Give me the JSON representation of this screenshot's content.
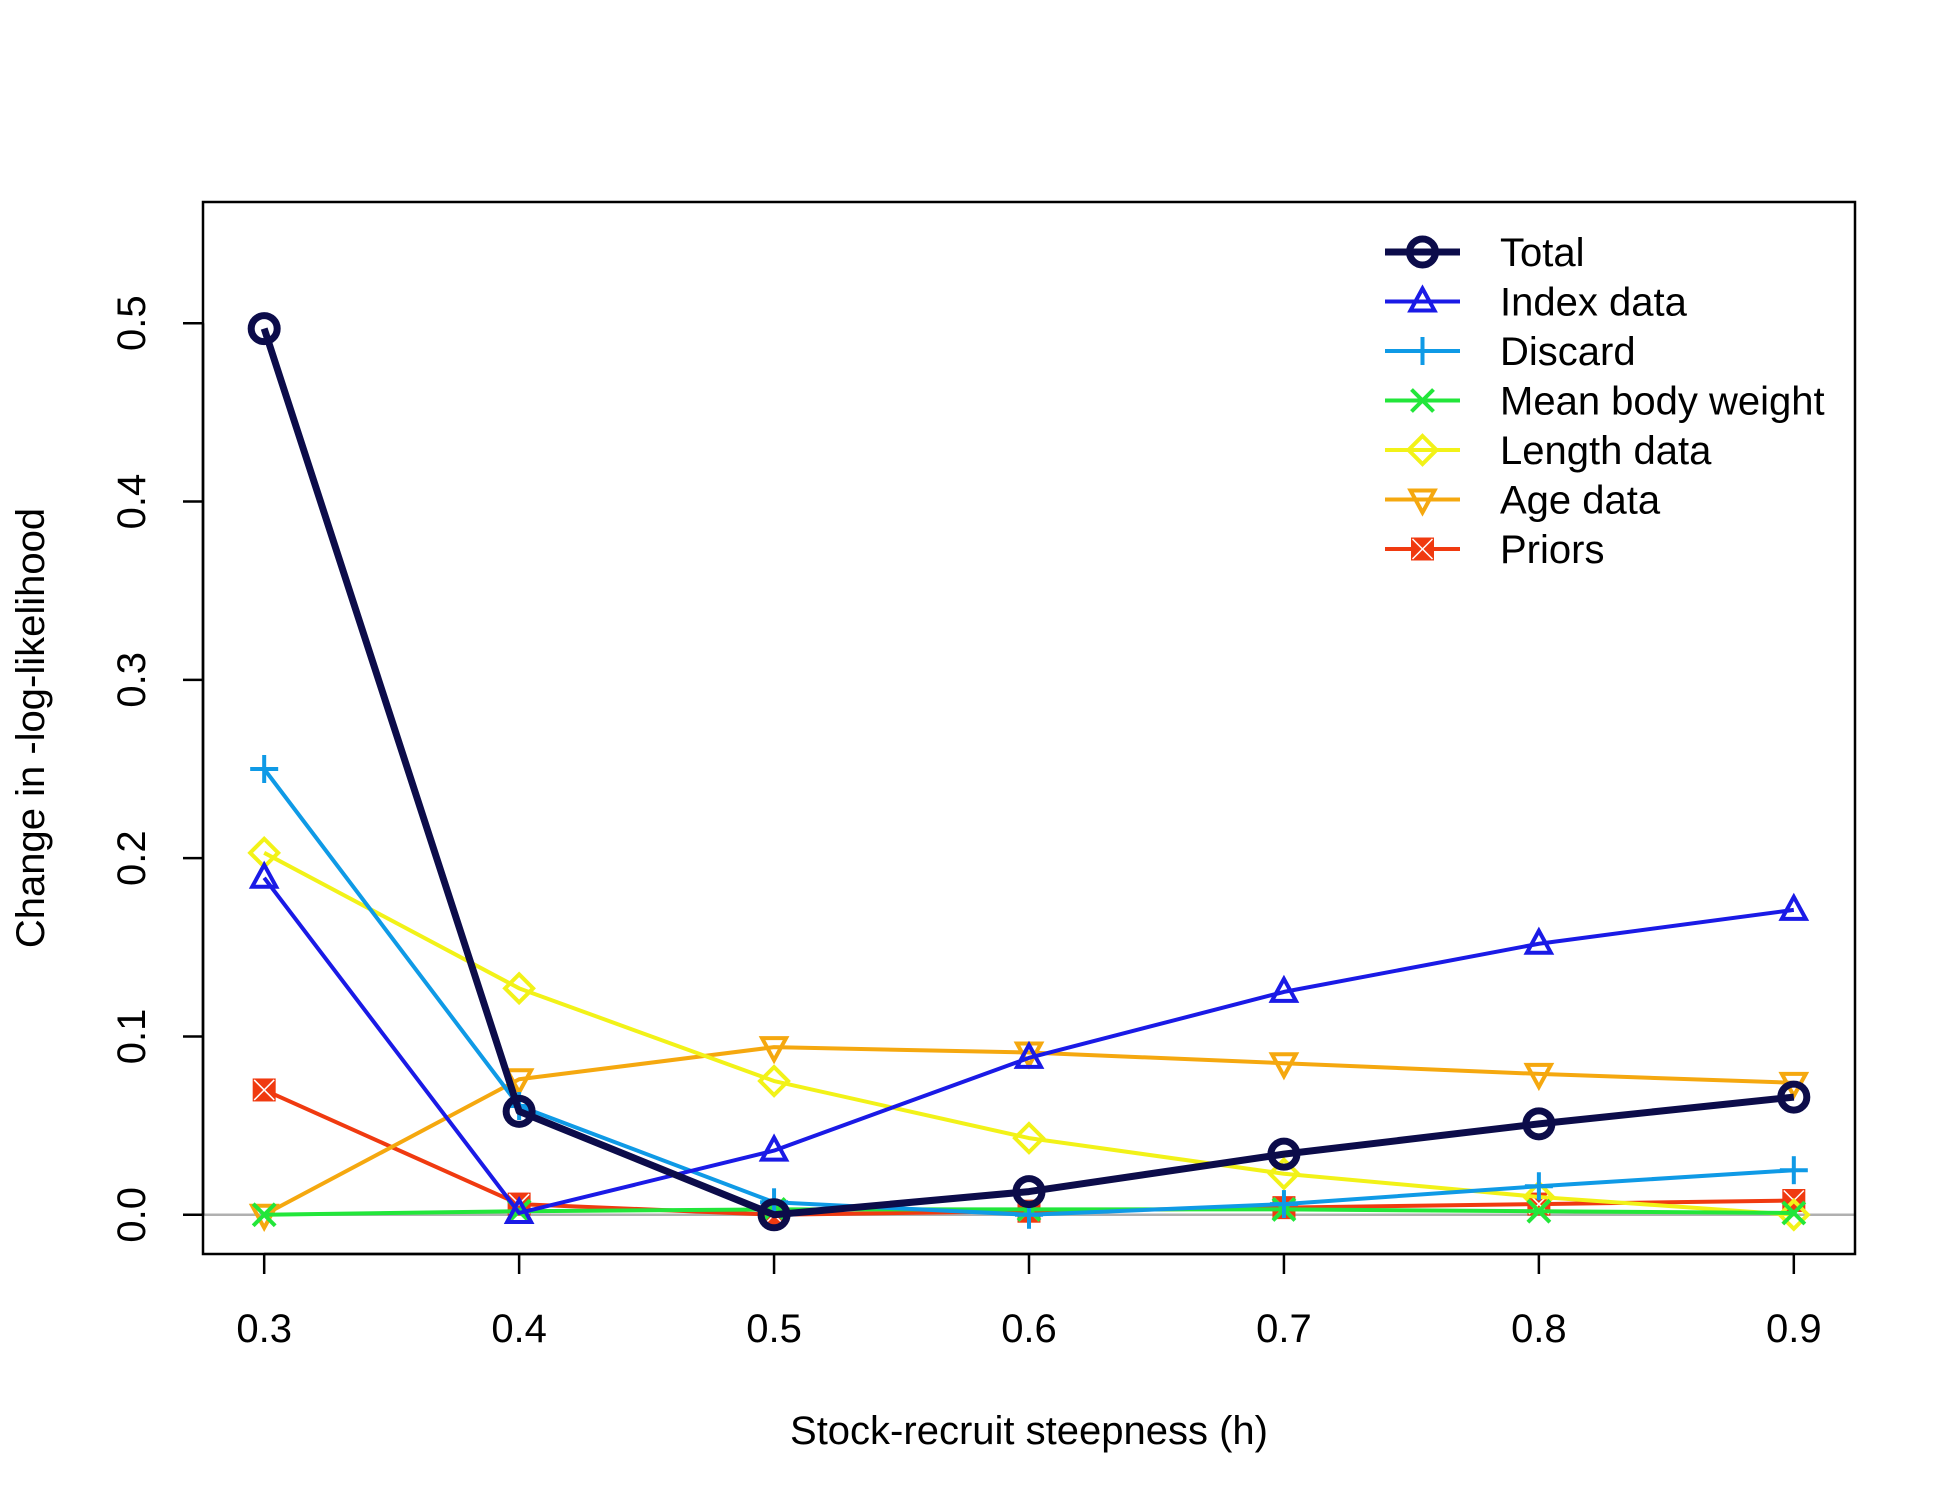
{
  "chart_data": {
    "type": "line",
    "title": "",
    "xlabel": "Stock-recruit steepness (h)",
    "ylabel": "Change in -log-likelihood",
    "x": [
      0.3,
      0.4,
      0.5,
      0.6,
      0.7,
      0.8,
      0.9
    ],
    "xlim": [
      0.276,
      0.924
    ],
    "ylim": [
      -0.022,
      0.568
    ],
    "xticks": [
      "0.3",
      "0.4",
      "0.5",
      "0.6",
      "0.7",
      "0.8",
      "0.9"
    ],
    "yticks": [
      "0.0",
      "0.1",
      "0.2",
      "0.3",
      "0.4",
      "0.5"
    ],
    "grid": false,
    "reference_line": 0,
    "legend_position": "top-right",
    "series": [
      {
        "name": "Total",
        "color": "#0c0c4a",
        "marker": "circle",
        "width": 7,
        "values": [
          0.497,
          0.058,
          0.0,
          0.013,
          0.034,
          0.051,
          0.066
        ]
      },
      {
        "name": "Index data",
        "color": "#1a1ae6",
        "marker": "triangle-up",
        "width": 4,
        "values": [
          0.189,
          0.001,
          0.036,
          0.088,
          0.125,
          0.152,
          0.171
        ]
      },
      {
        "name": "Discard",
        "color": "#0f9ae6",
        "marker": "plus",
        "width": 4,
        "values": [
          0.25,
          0.061,
          0.007,
          0.0,
          0.006,
          0.016,
          0.025
        ]
      },
      {
        "name": "Mean body weight",
        "color": "#22e63a",
        "marker": "cross",
        "width": 4,
        "values": [
          0.0,
          0.002,
          0.003,
          0.003,
          0.003,
          0.002,
          0.001
        ]
      },
      {
        "name": "Length data",
        "color": "#f2f218",
        "marker": "diamond",
        "width": 4,
        "values": [
          0.203,
          0.127,
          0.075,
          0.043,
          0.023,
          0.01,
          0.0
        ]
      },
      {
        "name": "Age data",
        "color": "#f5a80f",
        "marker": "triangle-down",
        "width": 4,
        "values": [
          0.0,
          0.076,
          0.094,
          0.091,
          0.085,
          0.079,
          0.074
        ]
      },
      {
        "name": "Priors",
        "color": "#f03a10",
        "marker": "square-cross",
        "width": 4,
        "values": [
          0.07,
          0.006,
          0.0,
          0.002,
          0.004,
          0.006,
          0.008
        ]
      }
    ]
  }
}
